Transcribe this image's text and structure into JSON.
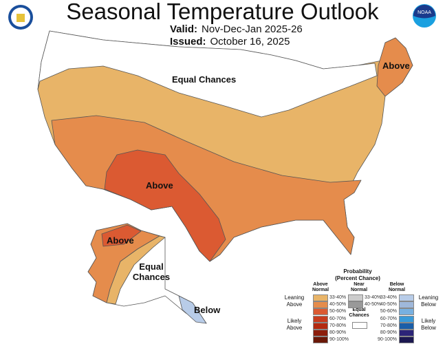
{
  "header": {
    "title": "Seasonal Temperature Outlook",
    "valid_label": "Valid:",
    "valid_value": "Nov-Dec-Jan 2025-26",
    "issued_label": "Issued:",
    "issued_value": "October 16, 2025",
    "logo_left": "Department of Commerce seal",
    "logo_right": "NOAA"
  },
  "map_labels": {
    "equal_chances_conus": "Equal Chances",
    "above_conus": "Above",
    "above_northeast": "Above",
    "above_alaska": "Above",
    "equal_chances_alaska": "Equal Chances",
    "below_alaska": "Below"
  },
  "legend": {
    "title": "Probability",
    "subtitle": "(Percent Chance)",
    "above_header": "Above Normal",
    "near_header": "Near Normal",
    "below_header": "Below Normal",
    "leaning_above": "Leaning Above",
    "likely_above": "Likely Above",
    "leaning_below": "Leaning Below",
    "likely_below": "Likely Below",
    "equal_chances": "Equal Chances",
    "above": [
      {
        "range": "33-40%",
        "color": "#e8b468"
      },
      {
        "range": "40-50%",
        "color": "#e58c4c"
      },
      {
        "range": "50-60%",
        "color": "#db5a32"
      },
      {
        "range": "60-70%",
        "color": "#c83c1e"
      },
      {
        "range": "70-80%",
        "color": "#b42a10"
      },
      {
        "range": "80-90%",
        "color": "#8c1e0c"
      },
      {
        "range": "90-100%",
        "color": "#6a1808"
      }
    ],
    "near": [
      {
        "range": "33-40%",
        "color": "#cccccc"
      },
      {
        "range": "40-50%",
        "color": "#999999"
      }
    ],
    "below": [
      {
        "range": "33-40%",
        "color": "#b8cce8"
      },
      {
        "range": "40-50%",
        "color": "#9fb8da"
      },
      {
        "range": "50-60%",
        "color": "#78b0e0"
      },
      {
        "range": "60-70%",
        "color": "#3a9ad8"
      },
      {
        "range": "70-80%",
        "color": "#1a5ea8"
      },
      {
        "range": "80-90%",
        "color": "#2c2478"
      },
      {
        "range": "90-100%",
        "color": "#1c1850"
      }
    ]
  }
}
